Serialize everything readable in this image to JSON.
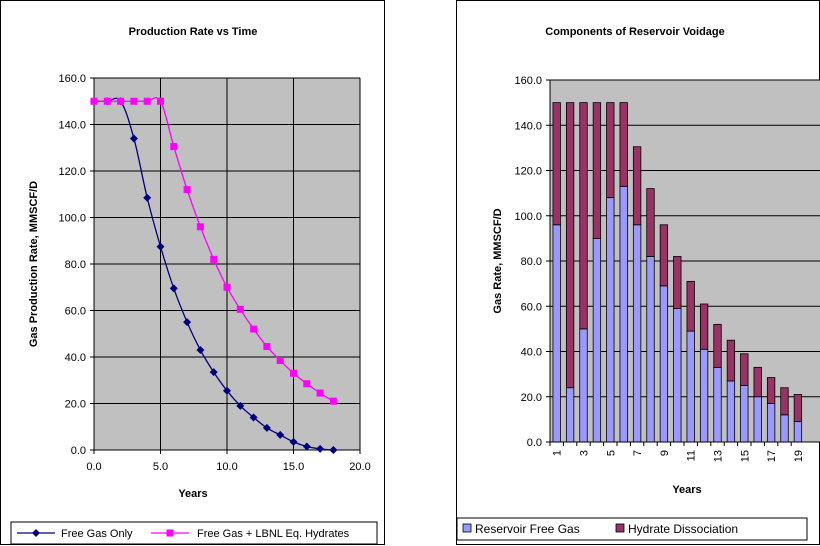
{
  "chart_data": [
    {
      "type": "line",
      "title": "Production Rate vs Time",
      "xlabel": "Years",
      "ylabel": "Gas Production Rate, MMSCF/D",
      "xlim": [
        0,
        20
      ],
      "ylim": [
        0,
        160
      ],
      "x_ticks": [
        "0.0",
        "5.0",
        "10.0",
        "15.0",
        "20.0"
      ],
      "y_ticks": [
        "0.0",
        "20.0",
        "40.0",
        "60.0",
        "80.0",
        "100.0",
        "120.0",
        "140.0",
        "160.0"
      ],
      "grid": true,
      "plot_background": "#c0c0c0",
      "legend_position": "bottom",
      "series": [
        {
          "name": "Free Gas Only",
          "color": "#000080",
          "marker": "diamond",
          "x": [
            0,
            1,
            2,
            3,
            4,
            5,
            6,
            7,
            8,
            9,
            10,
            11,
            12,
            13,
            14,
            15,
            16,
            17,
            18
          ],
          "y": [
            150,
            150,
            150,
            134,
            108.5,
            87.5,
            69.5,
            55,
            43,
            33.5,
            25.5,
            19,
            14,
            9.5,
            6.5,
            3.5,
            1.5,
            0.5,
            0
          ]
        },
        {
          "name": "Free Gas + LBNL Eq. Hydrates",
          "color": "#ff00ff",
          "marker": "square",
          "x": [
            0,
            1,
            2,
            3,
            4,
            5,
            6,
            7,
            8,
            9,
            10,
            11,
            12,
            13,
            14,
            15,
            16,
            17,
            18
          ],
          "y": [
            150,
            150,
            150,
            150,
            150,
            150,
            130.5,
            112,
            96,
            82,
            70,
            60.5,
            52,
            44.5,
            38.5,
            33,
            28.5,
            24.5,
            21
          ]
        }
      ]
    },
    {
      "type": "bar",
      "stacked": true,
      "title": "Components of Reservoir Voidage",
      "xlabel": "Years",
      "ylabel": "Gas Rate, MMSCF/D",
      "ylim": [
        0,
        160
      ],
      "y_ticks": [
        "0.0",
        "20.0",
        "40.0",
        "60.0",
        "80.0",
        "100.0",
        "120.0",
        "140.0",
        "160.0"
      ],
      "categories": [
        "1",
        "2",
        "3",
        "4",
        "5",
        "6",
        "7",
        "8",
        "9",
        "10",
        "11",
        "12",
        "13",
        "14",
        "15",
        "16",
        "17",
        "18",
        "19"
      ],
      "x_tick_labels": [
        "1",
        "3",
        "5",
        "7",
        "9",
        "11",
        "13",
        "15",
        "17",
        "19"
      ],
      "grid": true,
      "plot_background": "#c0c0c0",
      "legend_position": "bottom",
      "series": [
        {
          "name": "Reservoir Free Gas",
          "color": "#9999ff",
          "values": [
            96,
            24,
            50,
            90,
            108,
            113,
            96,
            82,
            69,
            59,
            49,
            41,
            33,
            27,
            25,
            20,
            17,
            12,
            9
          ]
        },
        {
          "name": "Hydrate Dissociation",
          "color": "#993366",
          "values": [
            54,
            126,
            100,
            60,
            42,
            37,
            34.5,
            30,
            27,
            23,
            22,
            20,
            19,
            18,
            14,
            13,
            11.5,
            12,
            12
          ]
        }
      ]
    }
  ]
}
